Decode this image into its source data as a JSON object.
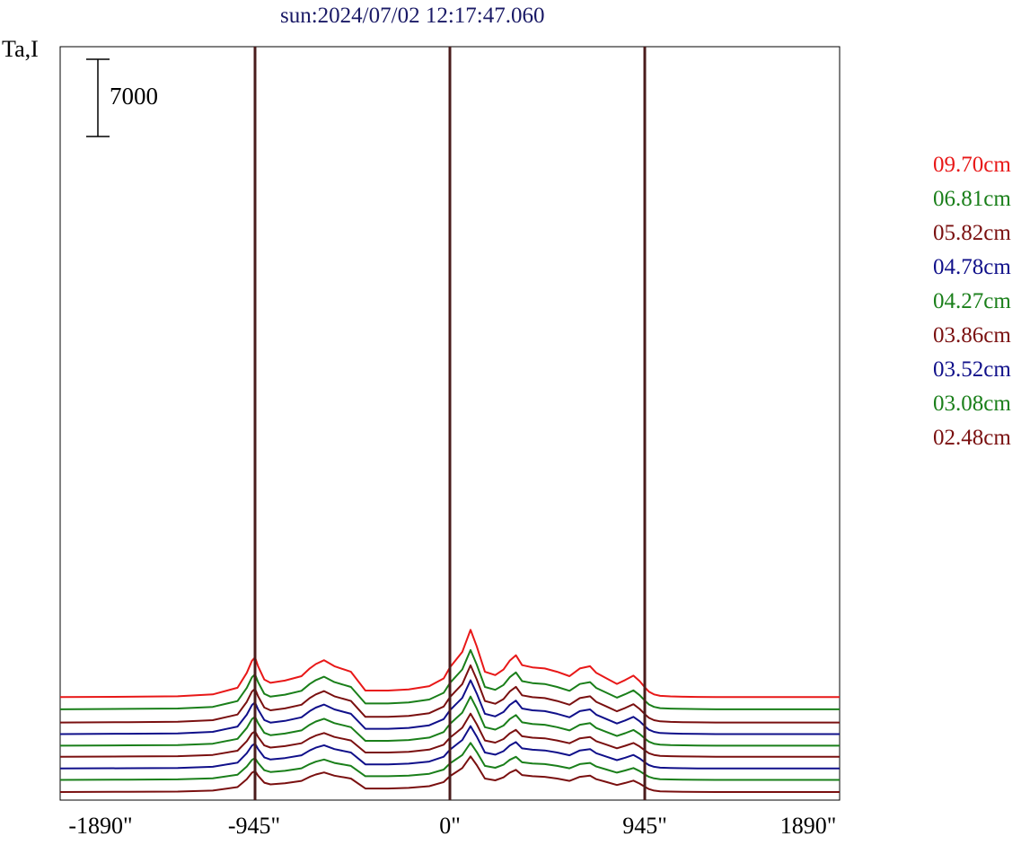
{
  "chart_data": {
    "type": "line",
    "title": "sun:2024/07/02 12:17:47.060",
    "ylabel": "Ta,I",
    "scale_bar": {
      "label": "7000",
      "value": 7000
    },
    "xlim": [
      -1890,
      1890
    ],
    "x_ticks": [
      {
        "value": -1890,
        "label": "-1890\""
      },
      {
        "value": -945,
        "label": "-945\""
      },
      {
        "value": 0,
        "label": "0\""
      },
      {
        "value": 945,
        "label": "945\""
      },
      {
        "value": 1890,
        "label": "1890\""
      }
    ],
    "vertical_lines": [
      -945,
      0,
      945
    ],
    "grid": false,
    "legend_position": "right",
    "colors": {
      "red": "#e81818",
      "green": "#1a7f1a",
      "maroon": "#7a1010",
      "navy": "#10108a",
      "vline": "#4a1c1c"
    },
    "series": [
      {
        "name": "09.70cm",
        "color": "#e81818",
        "baseline": 7900,
        "scale": 1.0
      },
      {
        "name": "06.81cm",
        "color": "#1a7f1a",
        "baseline": 6800,
        "scale": 0.88
      },
      {
        "name": "05.82cm",
        "color": "#7a1010",
        "baseline": 5600,
        "scale": 0.85
      },
      {
        "name": "04.78cm",
        "color": "#10108a",
        "baseline": 4550,
        "scale": 0.8
      },
      {
        "name": "04.27cm",
        "color": "#1a7f1a",
        "baseline": 3500,
        "scale": 0.73
      },
      {
        "name": "03.86cm",
        "color": "#7a1010",
        "baseline": 2500,
        "scale": 0.64
      },
      {
        "name": "03.52cm",
        "color": "#10108a",
        "baseline": 1430,
        "scale": 0.63
      },
      {
        "name": "03.08cm",
        "color": "#1a7f1a",
        "baseline": 400,
        "scale": 0.55
      },
      {
        "name": "02.48cm",
        "color": "#7a1010",
        "baseline": -700,
        "scale": 0.53
      }
    ],
    "profile_shape": {
      "x": [
        -1890,
        -1560,
        -1320,
        -1150,
        -1030,
        -985,
        -960,
        -945,
        -930,
        -900,
        -870,
        -800,
        -720,
        -680,
        -650,
        -610,
        -560,
        -480,
        -410,
        -300,
        -200,
        -100,
        -30,
        0,
        30,
        60,
        80,
        100,
        130,
        170,
        220,
        260,
        290,
        320,
        350,
        400,
        460,
        520,
        580,
        630,
        680,
        710,
        760,
        810,
        850,
        890,
        920,
        945,
        965,
        990,
        1020,
        1070,
        1130,
        1200,
        1290,
        1390,
        1560,
        1890
      ],
      "y": [
        0,
        40,
        80,
        250,
        850,
        2200,
        3300,
        3600,
        2800,
        1600,
        1300,
        1500,
        1900,
        2600,
        3000,
        3350,
        2800,
        2300,
        600,
        600,
        700,
        1000,
        1700,
        2700,
        3400,
        4100,
        5100,
        6100,
        4600,
        2300,
        2000,
        2500,
        3300,
        3800,
        2900,
        2700,
        2600,
        2300,
        1900,
        2600,
        2800,
        2200,
        1700,
        1200,
        1550,
        1950,
        1450,
        900,
        500,
        250,
        120,
        70,
        40,
        20,
        0,
        0,
        0,
        0
      ]
    }
  }
}
